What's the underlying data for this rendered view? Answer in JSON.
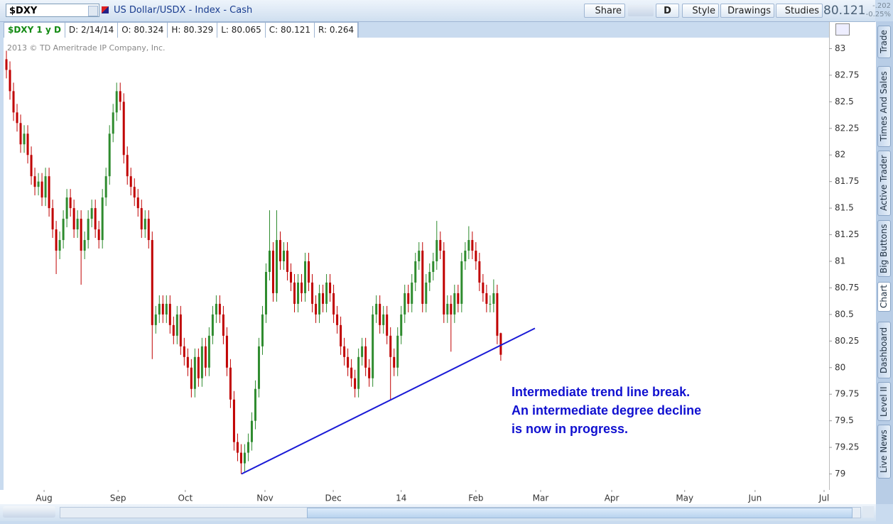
{
  "toolbar": {
    "symbol": "$DXY",
    "description": "US Dollar/USDX - Index - Cash",
    "buttons": [
      "Share",
      "D",
      "Style",
      "Drawings",
      "Studies"
    ],
    "last": "80.121",
    "change": "-.202",
    "change_pct": "-0.25%"
  },
  "info_bar": [
    "$DXY 1 y D",
    "D: 2/14/14",
    "O: 80.324",
    "H: 80.329",
    "L: 80.065",
    "C: 80.121",
    "R: 0.264"
  ],
  "side_tabs": [
    "Trade",
    "Times And Sales",
    "Active Trader",
    "Big Buttons",
    "Chart",
    "Dashboard",
    "Level II",
    "Live News"
  ],
  "chart_data": {
    "type": "candlestick",
    "copyright": "2013 © TD Ameritrade IP Company, Inc.",
    "up_color": "#2e8b2e",
    "down_color": "#c00000",
    "grid": false,
    "ylim": [
      78.85,
      83.09
    ],
    "yticks": [
      79,
      79.25,
      79.5,
      79.75,
      80,
      80.25,
      80.5,
      80.75,
      81,
      81.25,
      81.5,
      81.75,
      82,
      82.25,
      82.5,
      82.75,
      83
    ],
    "xlim": [
      -0.8,
      231.3
    ],
    "xticks": [
      {
        "value": 10.6,
        "label": "Aug"
      },
      {
        "value": 31.4,
        "label": "Sep"
      },
      {
        "value": 50.3,
        "label": "Oct"
      },
      {
        "value": 72.7,
        "label": "Nov"
      },
      {
        "value": 91.9,
        "label": "Dec"
      },
      {
        "value": 111.0,
        "label": "14"
      },
      {
        "value": 132.0,
        "label": "Feb"
      },
      {
        "value": 150.2,
        "label": "Mar"
      },
      {
        "value": 170.2,
        "label": "Apr"
      },
      {
        "value": 190.7,
        "label": "May"
      },
      {
        "value": 210.5,
        "label": "Jun"
      },
      {
        "value": 229.9,
        "label": "Jul"
      }
    ],
    "open": [
      82.9,
      82.8,
      82.6,
      82.4,
      82.3,
      82.1,
      82.2,
      82,
      81.8,
      81.7,
      81.75,
      81.6,
      81.8,
      81.5,
      81.3,
      81.1,
      81.2,
      81.4,
      81.6,
      81.5,
      81.3,
      81.4,
      81.1,
      81.2,
      81.4,
      81.5,
      81.3,
      81.2,
      81.6,
      81.8,
      82.2,
      82.4,
      82.6,
      82.5,
      82,
      81.8,
      81.7,
      81.6,
      81.5,
      81.3,
      81.4,
      81.2,
      80.4,
      80.5,
      80.6,
      80.5,
      80.6,
      80.4,
      80.3,
      80.5,
      80.2,
      80.1,
      80,
      79.8,
      80.1,
      79.9,
      80.2,
      80,
      80.3,
      80.5,
      80.6,
      80.5,
      80.3,
      80,
      79.7,
      79.3,
      79.2,
      79.1,
      79.2,
      79.3,
      79.5,
      79.8,
      80.2,
      80.5,
      80.9,
      81.1,
      80.7,
      81.2,
      81,
      81.1,
      80.9,
      80.8,
      80.6,
      80.8,
      80.7,
      81,
      80.8,
      80.6,
      80.5,
      80.7,
      80.6,
      80.8,
      80.7,
      80.5,
      80.4,
      80.2,
      80.1,
      80,
      79.9,
      79.8,
      80.1,
      80.2,
      80,
      79.9,
      80.5,
      80.6,
      80.4,
      80.5,
      80.3,
      80.1,
      80,
      80.3,
      80.5,
      80.7,
      80.6,
      80.8,
      81,
      81.1,
      80.6,
      80.8,
      80.9,
      81,
      81.2,
      81.1,
      80.5,
      80.6,
      80.5,
      80.7,
      80.6,
      81,
      81.1,
      81.2,
      81.1,
      81,
      80.8,
      80.7,
      80.6,
      80.6,
      80.7,
      80.324
    ],
    "high": [
      82.98,
      82.88,
      82.68,
      82.48,
      82.38,
      82.28,
      82.28,
      82.08,
      81.88,
      81.83,
      81.83,
      81.88,
      81.88,
      81.58,
      81.38,
      81.28,
      81.48,
      81.68,
      81.68,
      81.58,
      81.48,
      81.48,
      81.28,
      81.48,
      81.58,
      81.58,
      81.38,
      81.68,
      81.88,
      82.28,
      82.48,
      82.68,
      82.68,
      82.58,
      82.08,
      81.88,
      81.78,
      81.68,
      81.58,
      81.48,
      81.48,
      81.28,
      80.58,
      80.68,
      80.68,
      80.68,
      80.68,
      80.48,
      80.58,
      80.58,
      80.28,
      80.18,
      80.08,
      80.18,
      80.18,
      80.28,
      80.28,
      80.38,
      80.58,
      80.68,
      80.68,
      80.58,
      80.38,
      80.08,
      79.78,
      79.38,
      79.28,
      79.28,
      79.38,
      79.58,
      79.88,
      80.28,
      80.58,
      80.98,
      81.48,
      81.18,
      81.48,
      81.28,
      81.18,
      81.18,
      80.98,
      80.88,
      80.88,
      80.88,
      81.08,
      81.08,
      80.88,
      80.68,
      80.78,
      80.78,
      80.88,
      80.88,
      80.78,
      80.58,
      80.48,
      80.28,
      80.18,
      80.08,
      79.98,
      80.18,
      80.28,
      80.28,
      80.08,
      80.58,
      80.68,
      80.68,
      80.58,
      80.58,
      80.38,
      80.18,
      80.38,
      80.58,
      80.78,
      80.78,
      80.88,
      81.08,
      81.18,
      81.18,
      80.88,
      80.98,
      81.08,
      81.38,
      81.28,
      81.18,
      80.68,
      80.68,
      80.78,
      80.78,
      81.08,
      81.18,
      81.33,
      81.28,
      81.18,
      81.08,
      80.88,
      80.78,
      80.68,
      80.83,
      80.78,
      80.329
    ],
    "low": [
      82.72,
      82.52,
      82.32,
      82.22,
      82.02,
      82.02,
      81.92,
      81.72,
      81.62,
      81.62,
      81.52,
      81.52,
      81.42,
      81.22,
      80.88,
      81.02,
      81.12,
      81.32,
      81.42,
      81.22,
      81.22,
      80.78,
      81.02,
      81.12,
      81.32,
      81.22,
      81.12,
      81.12,
      81.52,
      81.72,
      82.12,
      82.32,
      82.42,
      81.92,
      81.72,
      81.62,
      81.52,
      81.42,
      81.22,
      81.22,
      81.12,
      80.08,
      80.32,
      80.42,
      80.42,
      80.42,
      80.32,
      80.22,
      80.22,
      80.12,
      80.02,
      79.92,
      79.72,
      79.72,
      79.82,
      79.82,
      79.92,
      79.92,
      80.22,
      80.42,
      80.42,
      80.22,
      79.92,
      79.62,
      79.22,
      79.12,
      79,
      79.02,
      79.12,
      79.22,
      79.42,
      79.72,
      80.12,
      80.42,
      80.82,
      80.62,
      80.62,
      80.92,
      80.92,
      80.82,
      80.72,
      80.52,
      80.52,
      80.62,
      80.62,
      80.72,
      80.52,
      80.42,
      80.42,
      80.52,
      80.52,
      80.62,
      80.42,
      80.32,
      80.12,
      80.02,
      79.92,
      79.82,
      79.72,
      79.72,
      80.02,
      79.92,
      79.82,
      79.82,
      80.42,
      80.32,
      80.32,
      80.22,
      79.7,
      79.92,
      79.92,
      80.22,
      80.42,
      80.52,
      80.52,
      80.72,
      80.92,
      80.52,
      80.52,
      80.72,
      80.82,
      80.92,
      81.02,
      80.42,
      80.42,
      80.15,
      80.42,
      80.52,
      80.52,
      80.92,
      81.02,
      81.02,
      80.92,
      80.72,
      80.62,
      80.52,
      80.52,
      80.52,
      80.22,
      80.065
    ],
    "close": [
      82.8,
      82.6,
      82.4,
      82.3,
      82.1,
      82.2,
      82,
      81.8,
      81.7,
      81.75,
      81.6,
      81.8,
      81.5,
      81.3,
      81.1,
      81.2,
      81.4,
      81.6,
      81.5,
      81.3,
      81.4,
      81.1,
      81.2,
      81.4,
      81.5,
      81.3,
      81.2,
      81.6,
      81.8,
      82.2,
      82.4,
      82.6,
      82.5,
      82,
      81.8,
      81.7,
      81.6,
      81.5,
      81.3,
      81.4,
      81.2,
      80.4,
      80.5,
      80.6,
      80.5,
      80.6,
      80.4,
      80.3,
      80.5,
      80.2,
      80.1,
      80,
      79.8,
      80.1,
      79.9,
      80.2,
      80,
      80.3,
      80.5,
      80.6,
      80.5,
      80.3,
      80,
      79.7,
      79.3,
      79.2,
      79.1,
      79.2,
      79.3,
      79.5,
      79.8,
      80.2,
      80.5,
      80.9,
      81.1,
      80.7,
      81.2,
      81,
      81.1,
      80.9,
      80.8,
      80.6,
      80.8,
      80.7,
      81,
      80.8,
      80.6,
      80.5,
      80.7,
      80.6,
      80.8,
      80.7,
      80.5,
      80.4,
      80.2,
      80.1,
      80,
      79.9,
      79.8,
      80.1,
      80.2,
      80,
      79.9,
      80.5,
      80.6,
      80.4,
      80.5,
      80.3,
      80.1,
      80,
      80.3,
      80.5,
      80.7,
      80.6,
      80.8,
      81,
      81.1,
      80.6,
      80.8,
      80.9,
      81,
      81.2,
      81.1,
      80.5,
      80.6,
      80.5,
      80.7,
      80.6,
      81,
      81.1,
      81.2,
      81.1,
      81,
      80.8,
      80.7,
      80.6,
      80.6,
      80.7,
      80.3,
      80.121
    ],
    "trendline": {
      "x": [
        66.1,
        148.6
      ],
      "y": [
        79.0,
        80.37
      ],
      "color": "#1a1ad6"
    },
    "annotation": {
      "lines": [
        "Intermediate trend line break.",
        "An intermediate degree decline",
        "is now in progress."
      ],
      "color": "#1010d0"
    }
  }
}
